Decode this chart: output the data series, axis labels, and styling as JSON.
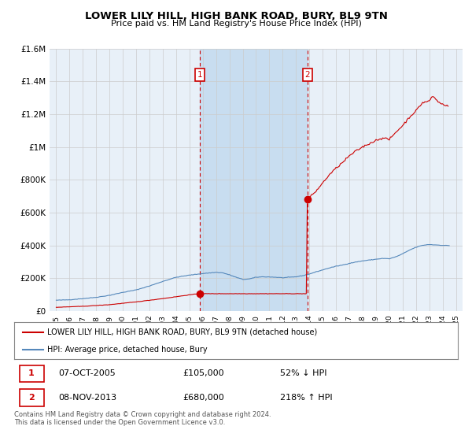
{
  "title": "LOWER LILY HILL, HIGH BANK ROAD, BURY, BL9 9TN",
  "subtitle": "Price paid vs. HM Land Registry's House Price Index (HPI)",
  "legend_line1": "LOWER LILY HILL, HIGH BANK ROAD, BURY, BL9 9TN (detached house)",
  "legend_line2": "HPI: Average price, detached house, Bury",
  "sale1_date": "07-OCT-2005",
  "sale1_price": "£105,000",
  "sale1_hpi": "52% ↓ HPI",
  "sale2_date": "08-NOV-2013",
  "sale2_price": "£680,000",
  "sale2_hpi": "218% ↑ HPI",
  "footer1": "Contains HM Land Registry data © Crown copyright and database right 2024.",
  "footer2": "This data is licensed under the Open Government Licence v3.0.",
  "sale1_x": 2005.77,
  "sale1_y": 105000,
  "sale2_x": 2013.85,
  "sale2_y": 680000,
  "hpi_color": "#5588bb",
  "property_color": "#cc0000",
  "vline_color": "#cc0000",
  "marker_box_color": "#cc0000",
  "shade_color": "#c8ddf0",
  "background_color": "#e8f0f8",
  "plot_bg": "#ffffff",
  "grid_color": "#cccccc",
  "ylim": [
    0,
    1600000
  ],
  "xlim": [
    1994.5,
    2025.5
  ],
  "yticks": [
    0,
    200000,
    400000,
    600000,
    800000,
    1000000,
    1200000,
    1400000,
    1600000
  ],
  "xticks": [
    1995,
    1996,
    1997,
    1998,
    1999,
    2000,
    2001,
    2002,
    2003,
    2004,
    2005,
    2006,
    2007,
    2008,
    2009,
    2010,
    2011,
    2012,
    2013,
    2014,
    2015,
    2016,
    2017,
    2018,
    2019,
    2020,
    2021,
    2022,
    2023,
    2024,
    2025
  ]
}
